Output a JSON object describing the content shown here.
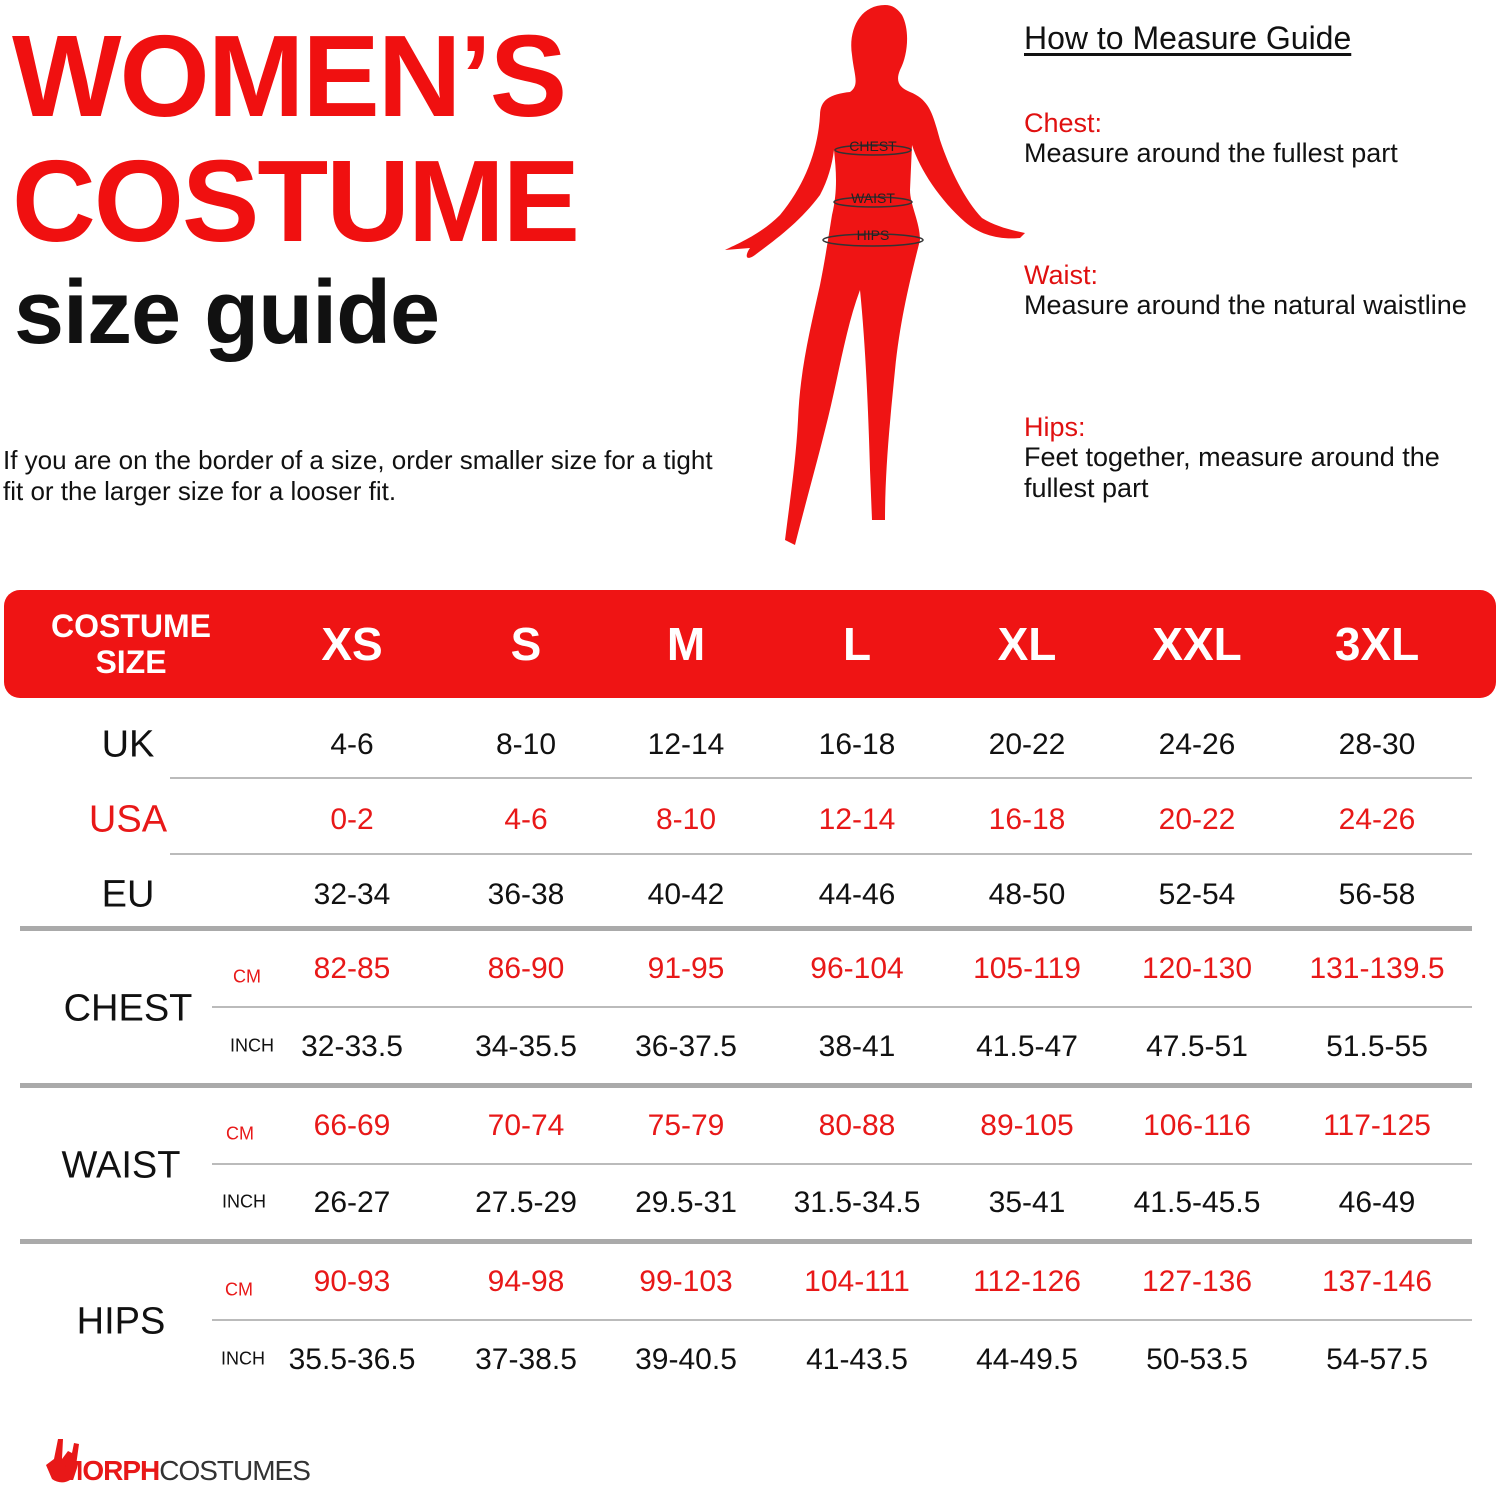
{
  "title": {
    "line1": "WOMEN’S",
    "line2": "COSTUME",
    "line3": "size guide"
  },
  "note": "If you are on the border of a size, order smaller size for a tight fit or the larger size for a looser fit.",
  "figure": {
    "labels": [
      "CHEST",
      "WAIST",
      "HIPS"
    ]
  },
  "guide": {
    "title": "How to Measure Guide",
    "items": [
      {
        "heading": "Chest:",
        "text": "Measure around the fullest part"
      },
      {
        "heading": "Waist:",
        "text": "Measure around the natural waistline"
      },
      {
        "heading": "Hips:",
        "text": "Feet together, measure around the fullest part"
      }
    ]
  },
  "table": {
    "header_label": "COSTUME SIZE",
    "sizes": [
      "XS",
      "S",
      "M",
      "L",
      "XL",
      "XXL",
      "3XL"
    ],
    "conversions": [
      {
        "label": "UK",
        "values": [
          "4-6",
          "8-10",
          "12-14",
          "16-18",
          "20-22",
          "24-26",
          "28-30"
        ]
      },
      {
        "label": "USA",
        "values": [
          "0-2",
          "4-6",
          "8-10",
          "12-14",
          "16-18",
          "20-22",
          "24-26"
        ]
      },
      {
        "label": "EU",
        "values": [
          "32-34",
          "36-38",
          "40-42",
          "44-46",
          "48-50",
          "52-54",
          "56-58"
        ]
      }
    ],
    "measurements": [
      {
        "label": "CHEST",
        "cm_label": "CM",
        "inch_label": "INCH",
        "cm": [
          "82-85",
          "86-90",
          "91-95",
          "96-104",
          "105-119",
          "120-130",
          "131-139.5"
        ],
        "inch": [
          "32-33.5",
          "34-35.5",
          "36-37.5",
          "38-41",
          "41.5-47",
          "47.5-51",
          "51.5-55"
        ]
      },
      {
        "label": "WAIST",
        "cm_label": "CM",
        "inch_label": "INCH",
        "cm": [
          "66-69",
          "70-74",
          "75-79",
          "80-88",
          "89-105",
          "106-116",
          "117-125"
        ],
        "inch": [
          "26-27",
          "27.5-29",
          "29.5-31",
          "31.5-34.5",
          "35-41",
          "41.5-45.5",
          "46-49"
        ]
      },
      {
        "label": "HIPS",
        "cm_label": "CM",
        "inch_label": "INCH",
        "cm": [
          "90-93",
          "94-98",
          "99-103",
          "104-111",
          "112-126",
          "127-136",
          "137-146"
        ],
        "inch": [
          "35.5-36.5",
          "37-38.5",
          "39-40.5",
          "41-43.5",
          "44-49.5",
          "50-53.5",
          "54-57.5"
        ]
      }
    ]
  },
  "logo": {
    "part1": "MORPH",
    "part2": "COSTUMES"
  },
  "colors": {
    "accent": "#ef1414",
    "text": "#111111",
    "rule": "#aaaaaa"
  }
}
